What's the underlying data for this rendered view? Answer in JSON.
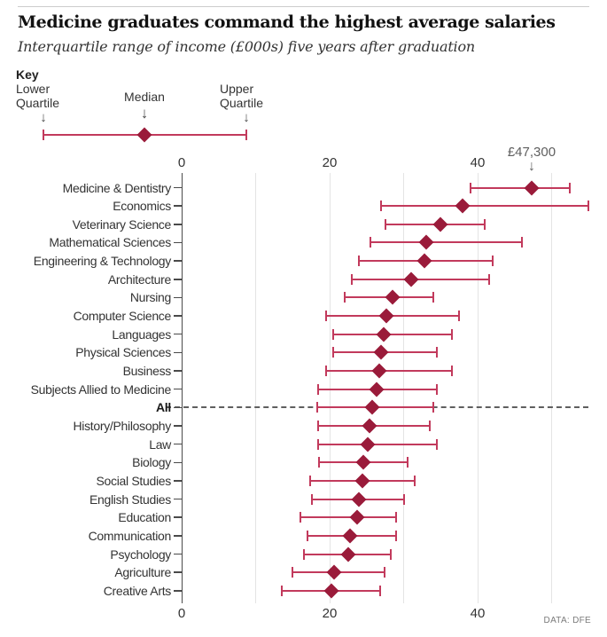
{
  "header": {
    "title": "Medicine graduates command the highest average salaries",
    "subtitle": "Interquartile range of income (£000s) five years after graduation"
  },
  "key": {
    "heading": "Key",
    "lower": "Lower Quartile",
    "median": "Median",
    "upper": "Upper Quartile"
  },
  "source": {
    "label": "DATA: DFE"
  },
  "colors": {
    "diamond": "#9a1b3a",
    "whisker": "#c23a5c",
    "grid": "#e4e4e4",
    "axis": "#4a4a4a",
    "dashed_line": "#5f5f5f",
    "annotation": "#5f5f5f",
    "text": "#333333",
    "source_text": "#7a7a7a",
    "rule": "#cccccc"
  },
  "chart_data": {
    "type": "scatter",
    "subtype": "interquartile-range-dot-whisker",
    "title": "Medicine graduates command the highest average salaries",
    "subtitle": "Interquartile range of income (£000s) five years after graduation",
    "xlabel": "",
    "ylabel": "",
    "xlim": [
      0,
      55
    ],
    "x_ticks": [
      0,
      20,
      40
    ],
    "x_gridlines": [
      10,
      20,
      30,
      40,
      50
    ],
    "grid": true,
    "legend_position": "key-above-chart",
    "legend_entries": [
      "Lower Quartile",
      "Median",
      "Upper Quartile"
    ],
    "highlight_category": "All",
    "annotation": {
      "text": "£47,300",
      "category": "Medicine & Dentistry",
      "series": "Median",
      "value": 47.3
    },
    "categories": [
      "Medicine & Dentistry",
      "Economics",
      "Veterinary Science",
      "Mathematical Sciences",
      "Engineering & Technology",
      "Architecture",
      "Nursing",
      "Computer Science",
      "Languages",
      "Physical Sciences",
      "Business",
      "Subjects Allied to Medicine",
      "All",
      "History/Philosophy",
      "Law",
      "Biology",
      "Social Studies",
      "English Studies",
      "Education",
      "Communication",
      "Psychology",
      "Agriculture",
      "Creative Arts"
    ],
    "series": [
      {
        "name": "Lower Quartile",
        "values": [
          39,
          27,
          27.5,
          25.5,
          24,
          23,
          22,
          19.5,
          20.5,
          20.5,
          19.5,
          18.5,
          18.3,
          18.5,
          18.4,
          18.6,
          17.4,
          17.6,
          16,
          17,
          16.5,
          15,
          13.5
        ]
      },
      {
        "name": "Median",
        "values": [
          47.3,
          38,
          35,
          33,
          32.8,
          31,
          28.5,
          27.7,
          27.3,
          27,
          26.7,
          26.3,
          25.8,
          25.4,
          25.2,
          24.6,
          24.4,
          24,
          23.7,
          22.8,
          22.5,
          20.6,
          20.2
        ]
      },
      {
        "name": "Upper Quartile",
        "values": [
          52.5,
          55,
          41,
          46,
          42,
          41.5,
          34,
          37.5,
          36.5,
          34.5,
          36.5,
          34.5,
          34,
          33.5,
          34.5,
          30.5,
          31.5,
          30,
          29,
          29,
          28.3,
          27.4,
          26.8
        ]
      }
    ]
  }
}
